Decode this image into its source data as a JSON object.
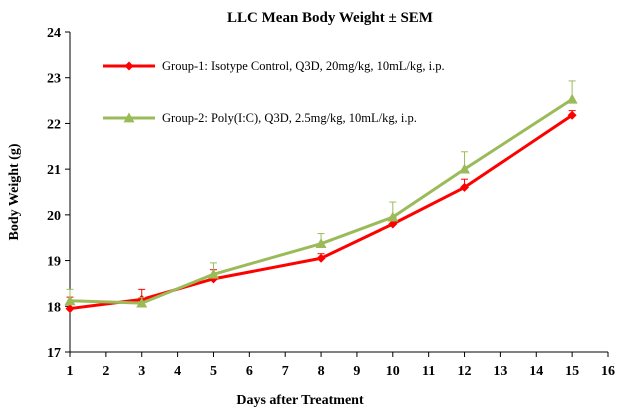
{
  "chart_data": {
    "type": "line",
    "title": "LLC Mean Body Weight ±   SEM",
    "xlabel": "Days after Treatment",
    "ylabel": "Body Weight (g)",
    "xlim": [
      1,
      16
    ],
    "ylim": [
      17,
      24
    ],
    "xticks": [
      1,
      2,
      3,
      4,
      5,
      6,
      7,
      8,
      9,
      10,
      11,
      12,
      13,
      14,
      15,
      16
    ],
    "yticks": [
      17,
      18,
      19,
      20,
      21,
      22,
      23,
      24
    ],
    "grid": false,
    "legend_position": "top-left",
    "series": [
      {
        "name": "Group-1: Isotype Control, Q3D, 20mg/kg, 10mL/kg, i.p.",
        "color": "#ff0000",
        "marker": "diamond",
        "x": [
          1,
          3,
          5,
          8,
          10,
          12,
          15
        ],
        "y": [
          17.95,
          18.15,
          18.6,
          19.05,
          19.8,
          20.6,
          22.18
        ],
        "err": [
          0.25,
          0.22,
          0.2,
          0.1,
          0.15,
          0.18,
          0.1
        ]
      },
      {
        "name": "Group-2: Poly(I:C), Q3D, 2.5mg/kg, 10mL/kg, i.p.",
        "color": "#9bbb59",
        "marker": "triangle",
        "x": [
          1,
          3,
          5,
          8,
          10,
          12,
          15
        ],
        "y": [
          18.12,
          18.07,
          18.7,
          19.37,
          19.95,
          21.0,
          22.53
        ],
        "err": [
          0.25,
          0.12,
          0.25,
          0.22,
          0.33,
          0.38,
          0.4
        ]
      }
    ]
  }
}
